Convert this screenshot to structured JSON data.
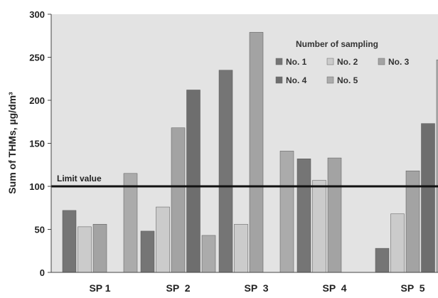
{
  "chart_data": {
    "type": "bar",
    "title": "",
    "xlabel": "",
    "ylabel": "Sum of THMs, µg/dm³",
    "ylim": [
      0,
      300
    ],
    "yticks": [
      0,
      50,
      100,
      150,
      200,
      250,
      300
    ],
    "grid": false,
    "categories": [
      "SP 1",
      "SP  2",
      "SP  3",
      "SP  4",
      "SP  5"
    ],
    "series": [
      {
        "name": "No. 1",
        "color": "#757575",
        "values": [
          72,
          48,
          235,
          132,
          28
        ]
      },
      {
        "name": "No. 2",
        "color": "#cbcbcb",
        "values": [
          53,
          76,
          56,
          107,
          68
        ]
      },
      {
        "name": "No. 3",
        "color": "#a3a3a3",
        "values": [
          56,
          168,
          279,
          133,
          118
        ]
      },
      {
        "name": "No. 4",
        "color": "#6e6e6e",
        "values": [
          null,
          212,
          null,
          null,
          173
        ]
      },
      {
        "name": "No. 5",
        "color": "#ababab",
        "values": [
          115,
          43,
          141,
          null,
          247
        ]
      }
    ],
    "legend": {
      "title": "Number of sampling",
      "placement": "top-right"
    },
    "limit_line": {
      "value": 100,
      "label": "Limit value"
    },
    "plot_background": "#e3e3e3"
  }
}
